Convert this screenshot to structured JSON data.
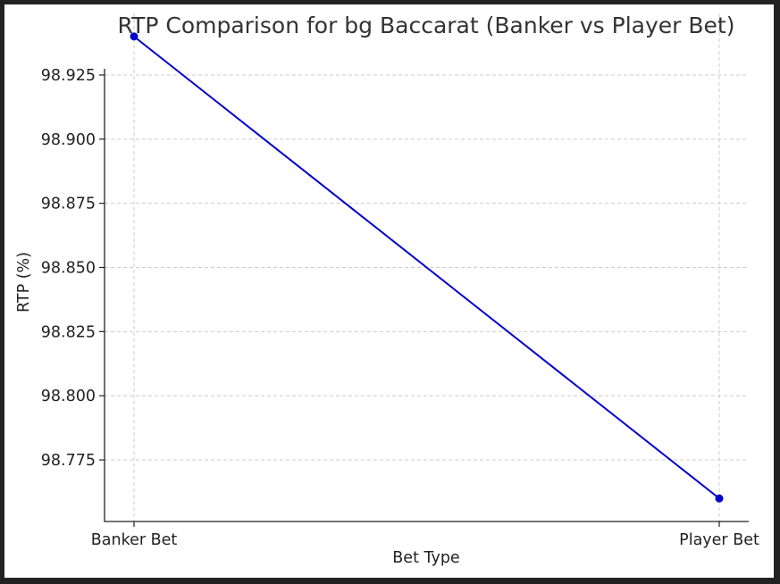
{
  "chart_data": {
    "type": "line",
    "title": "RTP Comparison for bg Baccarat (Banker vs Player Bet)",
    "xlabel": "Bet Type",
    "ylabel": "RTP (%)",
    "categories": [
      "Banker Bet",
      "Player Bet"
    ],
    "series": [
      {
        "values": [
          98.94,
          98.76
        ],
        "color": "#0000cc"
      }
    ],
    "yticks": [
      98.775,
      98.8,
      98.825,
      98.85,
      98.875,
      98.9,
      98.925
    ],
    "ytick_labels": [
      "98.775",
      "98.800",
      "98.825",
      "98.850",
      "98.875",
      "98.900",
      "98.925"
    ],
    "ylim": [
      98.751,
      98.949
    ],
    "grid": true,
    "marker": "circle"
  }
}
